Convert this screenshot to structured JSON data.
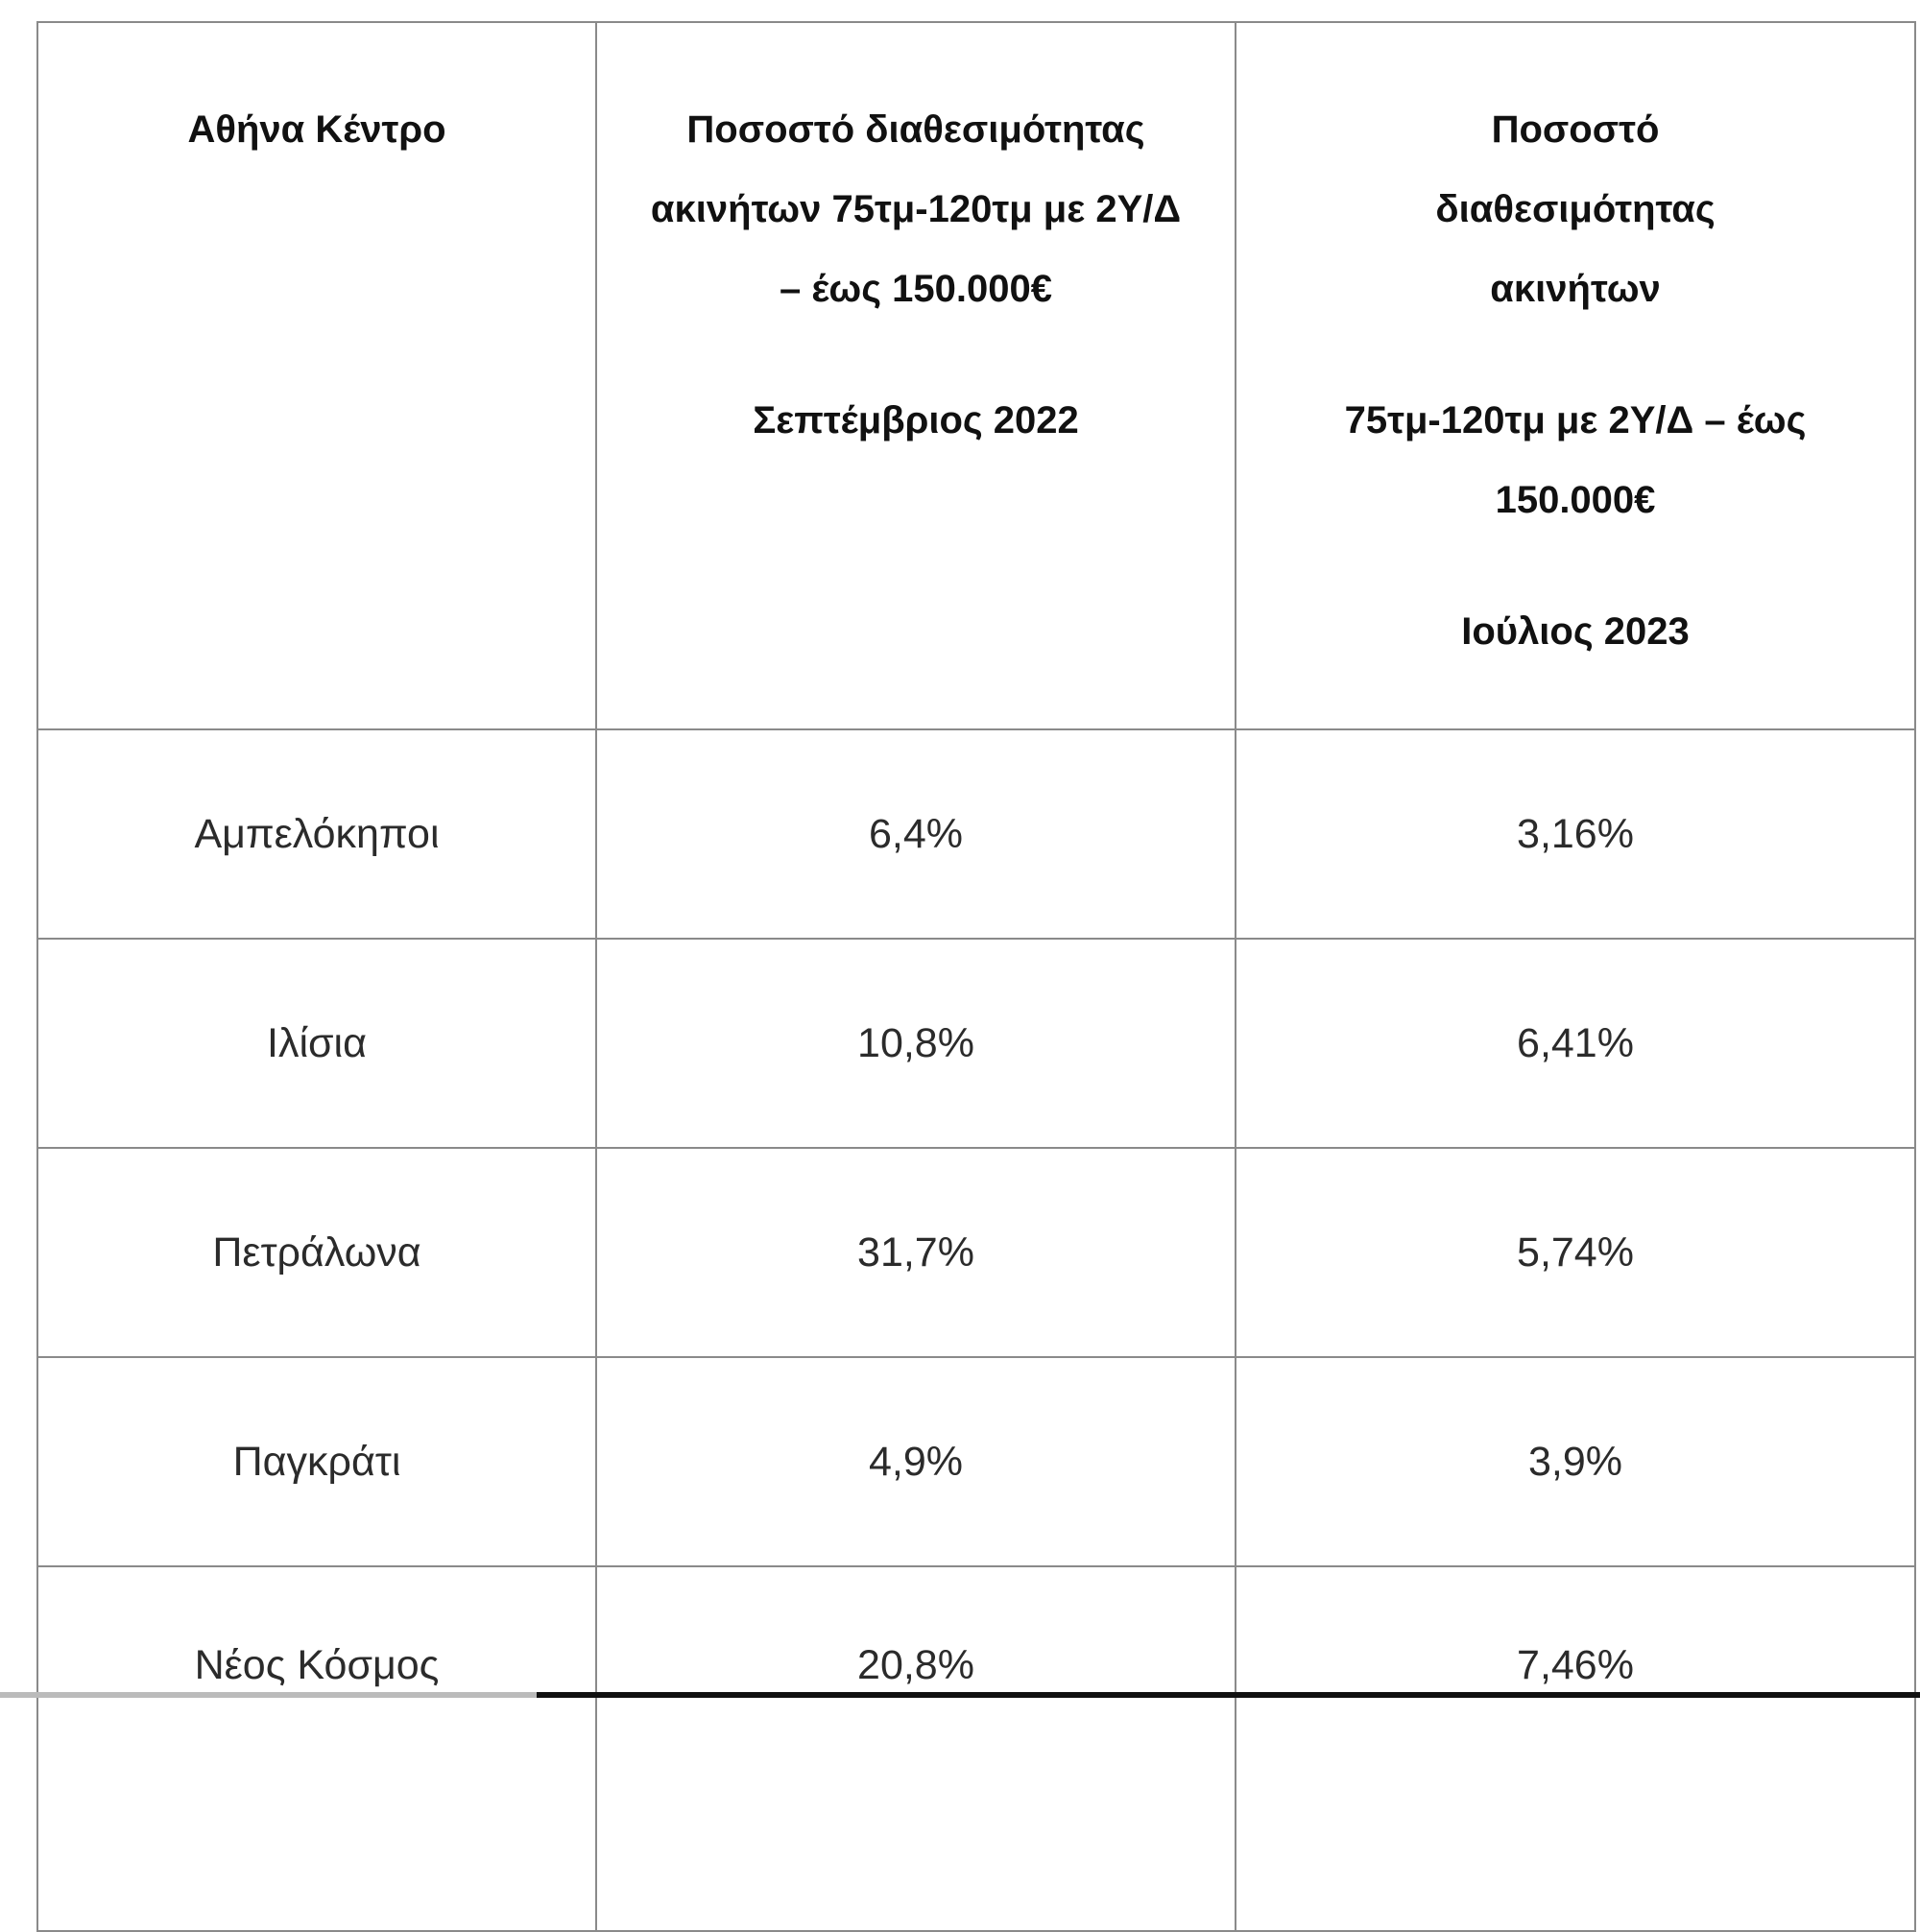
{
  "table": {
    "headers": [
      {
        "paragraphs": [
          "Αθήνα Κέντρο"
        ]
      },
      {
        "paragraphs": [
          "Ποσοστό διαθεσιμότητας ακινήτων 75τμ-120τμ με 2Υ/Δ – έως 150.000€",
          "Σεπτέμβριος 2022"
        ]
      },
      {
        "paragraphs": [
          "Ποσοστό διαθεσιμότητας ακινήτων",
          "75τμ-120τμ με 2Υ/Δ – έως 150.000€",
          "Ιούλιος 2023"
        ]
      }
    ],
    "rows": [
      [
        "Αμπελόκηποι",
        "6,4%",
        "3,16%"
      ],
      [
        "Ιλίσια",
        "10,8%",
        "6,41%"
      ],
      [
        "Πετράλωνα",
        "31,7%",
        "5,74%"
      ],
      [
        "Παγκράτι",
        "4,9%",
        "3,9%"
      ],
      [
        "Νέος Κόσμος",
        "20,8%",
        "7,46%"
      ]
    ]
  }
}
